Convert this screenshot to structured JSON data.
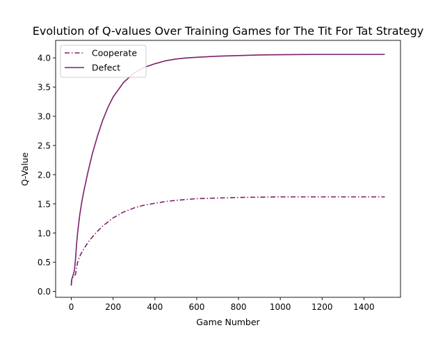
{
  "colors": {
    "series": "#7b1f6a",
    "axis": "#000000",
    "legend_border": "#cccccc",
    "background": "#ffffff"
  },
  "chart_data": {
    "type": "line",
    "title": "Evolution of Q-values Over Training Games for The Tit For Tat Strategy",
    "xlabel": "Game Number",
    "ylabel": "Q-Value",
    "xlim": [
      -75,
      1575
    ],
    "ylim": [
      -0.1,
      4.3
    ],
    "xticks": [
      0,
      200,
      400,
      600,
      800,
      1000,
      1200,
      1400
    ],
    "yticks": [
      0.0,
      0.5,
      1.0,
      1.5,
      2.0,
      2.5,
      3.0,
      3.5,
      4.0
    ],
    "grid": false,
    "legend_position": "top-left",
    "series": [
      {
        "name": "Cooperate",
        "line_style": "dashdot",
        "x": [
          0,
          1,
          3,
          6,
          10,
          15,
          20,
          25,
          30,
          40,
          50,
          60,
          80,
          100,
          125,
          150,
          175,
          200,
          250,
          300,
          350,
          400,
          450,
          500,
          600,
          700,
          800,
          900,
          1000,
          1100,
          1200,
          1300,
          1400,
          1500
        ],
        "y": [
          0.12,
          0.17,
          0.21,
          0.24,
          0.25,
          0.27,
          0.29,
          0.4,
          0.5,
          0.6,
          0.67,
          0.73,
          0.84,
          0.93,
          1.03,
          1.12,
          1.19,
          1.26,
          1.36,
          1.43,
          1.48,
          1.51,
          1.54,
          1.56,
          1.59,
          1.6,
          1.61,
          1.615,
          1.62,
          1.62,
          1.62,
          1.62,
          1.62,
          1.62
        ]
      },
      {
        "name": "Defect",
        "line_style": "solid",
        "x": [
          0,
          1,
          3,
          5,
          8,
          10,
          15,
          20,
          25,
          30,
          40,
          50,
          60,
          80,
          100,
          125,
          150,
          175,
          200,
          250,
          300,
          350,
          400,
          450,
          500,
          550,
          600,
          700,
          800,
          900,
          1000,
          1100,
          1200,
          1300,
          1400,
          1500
        ],
        "y": [
          0.1,
          0.17,
          0.22,
          0.24,
          0.27,
          0.3,
          0.36,
          0.55,
          0.8,
          1.0,
          1.3,
          1.53,
          1.72,
          2.05,
          2.35,
          2.66,
          2.93,
          3.15,
          3.33,
          3.58,
          3.74,
          3.84,
          3.9,
          3.95,
          3.98,
          4.0,
          4.01,
          4.03,
          4.04,
          4.05,
          4.055,
          4.058,
          4.06,
          4.06,
          4.06,
          4.06
        ]
      }
    ]
  }
}
